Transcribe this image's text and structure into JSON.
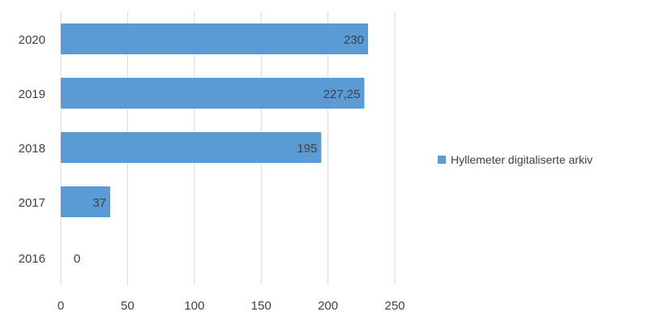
{
  "chart_data": {
    "type": "bar",
    "orientation": "horizontal",
    "categories": [
      "2020",
      "2019",
      "2018",
      "2017",
      "2016"
    ],
    "series": [
      {
        "name": "Hyllemeter digitaliserte arkiv",
        "values": [
          230,
          227.25,
          195,
          37,
          0
        ],
        "value_labels": [
          "230",
          "227,25",
          "195",
          "37",
          "0"
        ],
        "color": "#5b9bd5"
      }
    ],
    "xlim": [
      0,
      250
    ],
    "x_ticks": [
      "0",
      "50",
      "100",
      "150",
      "200",
      "250"
    ],
    "grid": true,
    "legend_position": "right"
  }
}
